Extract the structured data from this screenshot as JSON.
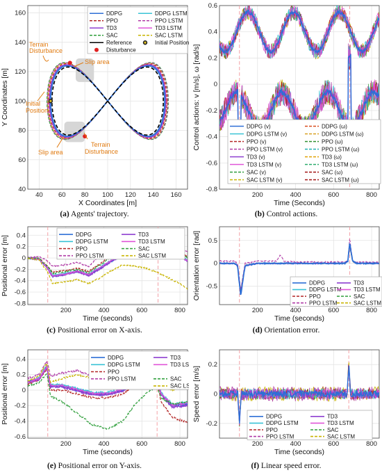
{
  "colors": {
    "DDPG": "#2d6fd6",
    "DDPG LSTM": "#39c3d6",
    "PPO": "#b22222",
    "PPO LSTM": "#b03aa6",
    "TD3": "#8e3fd0",
    "TD3 LSTM": "#e055d8",
    "SAC": "#2e9e3a",
    "SAC LSTM": "#c8b400",
    "Reference": "#000000",
    "annotation": "#e07b12",
    "initial": "#cc2020"
  },
  "chart_data": [
    {
      "id": "a",
      "type": "line",
      "caption_tag": "(a)",
      "caption_text": "Agents' trajectory.",
      "xlabel": "X Coordinates [m]",
      "ylabel": "Y Coordinates [m]",
      "xlim": [
        30,
        170
      ],
      "ylim": [
        40,
        165
      ],
      "xticks": [
        40,
        60,
        80,
        100,
        120,
        140,
        160
      ],
      "yticks": [
        40,
        60,
        80,
        100,
        120,
        140,
        160
      ],
      "grid": true,
      "legend": {
        "placement": "top-right",
        "entries": [
          "DDPG",
          "DDPG LSTM",
          "PPO",
          "PPO LSTM",
          "TD3",
          "TD3 LSTM",
          "SAC",
          "SAC LSTM",
          "Reference",
          "Initial Position",
          "Disturbance"
        ]
      },
      "series": [
        {
          "name": "DDPG",
          "center": [
            100,
            100
          ],
          "amp": [
            50,
            25
          ]
        },
        {
          "name": "Reference",
          "center": [
            100,
            100
          ],
          "amp": [
            51,
            24
          ]
        }
      ],
      "annotations": [
        "Terrain\nDisturbance",
        "Slip area",
        "Initial\nPosition",
        "Slip area",
        "Terrain\nDisturbance"
      ],
      "slip_areas": [
        {
          "x": [
            72,
            88
          ],
          "y": [
            113,
            129
          ]
        },
        {
          "x": [
            62,
            80
          ],
          "y": [
            72,
            86
          ]
        }
      ],
      "initial_position": [
        50,
        100
      ],
      "disturbances": [
        [
          67,
          126
        ],
        [
          80,
          76
        ]
      ]
    },
    {
      "id": "b",
      "type": "line",
      "caption_tag": "(b)",
      "caption_text": "Control actions.",
      "xlabel": "Time (Seconds)",
      "ylabel": "Control actions: v [m/s], ω [rad/s]",
      "xlim": [
        0,
        840
      ],
      "ylim": [
        -0.8,
        0.6
      ],
      "xticks": [
        200,
        400,
        600,
        800
      ],
      "yticks": [
        -0.8,
        -0.6,
        -0.4,
        -0.2,
        0,
        0.2,
        0.4,
        0.6
      ],
      "grid": true,
      "vlines": [
        105,
        685
      ],
      "legend": {
        "placement": "bottom",
        "entries": [
          "DDPG (v)",
          "DDPG (ω)",
          "DDPG LSTM (v)",
          "DDPG LSTM (ω)",
          "PPO (v)",
          "PPO (ω)",
          "PPO LSTM (v)",
          "PPO LSTM (ω)",
          "TD3 (v)",
          "TD3 (ω)",
          "TD3 LSTM (v)",
          "TD3 LSTM (ω)",
          "SAC (v)",
          "SAC (ω)",
          "SAC LSTM (v)",
          "SAC LSTM (ω)"
        ]
      },
      "series": [
        {
          "name": "v",
          "mean": 0.4,
          "swing": 0.15,
          "period": 240,
          "noise": 0.06
        },
        {
          "name": "ω",
          "mean": -0.2,
          "swing": 0.14,
          "period": 240,
          "noise": 0.1
        }
      ]
    },
    {
      "id": "c",
      "type": "line",
      "caption_tag": "(c)",
      "caption_text": "Positional error on X-axis.",
      "xlabel": "Time (seconds)",
      "ylabel": "Positional error [m]",
      "xlim": [
        0,
        840
      ],
      "ylim": [
        -0.82,
        0.55
      ],
      "xticks": [
        200,
        400,
        600,
        800
      ],
      "yticks": [
        -0.8,
        -0.6,
        -0.4,
        -0.2,
        0,
        0.2,
        0.4
      ],
      "grid": true,
      "vlines": [
        105,
        685
      ],
      "legend": {
        "placement": "top",
        "entries": [
          "DDPG",
          "TD3",
          "DDPG LSTM",
          "TD3 LSTM",
          "PPO",
          "SAC",
          "PPO LSTM",
          "SAC LSTM"
        ]
      },
      "x": [
        0,
        60,
        105,
        130,
        200,
        260,
        320,
        380,
        440,
        500,
        560,
        620,
        680,
        740,
        800,
        840
      ],
      "series": [
        {
          "name": "DDPG",
          "values": [
            0,
            -0.02,
            -0.18,
            -0.32,
            -0.28,
            -0.23,
            -0.3,
            -0.18,
            -0.05,
            0.05,
            0.05,
            0.04,
            0.05,
            0.08,
            0.05,
            -0.05
          ]
        },
        {
          "name": "DDPG LSTM",
          "values": [
            0,
            -0.02,
            -0.17,
            -0.3,
            -0.27,
            -0.22,
            -0.28,
            -0.16,
            -0.03,
            0.07,
            0.06,
            0.05,
            0.06,
            0.09,
            0.05,
            -0.04
          ]
        },
        {
          "name": "PPO",
          "values": [
            0,
            -0.01,
            -0.14,
            -0.25,
            -0.22,
            -0.18,
            -0.24,
            -0.1,
            0.05,
            0.15,
            0.14,
            0.12,
            0.14,
            0.16,
            0.12,
            0.02
          ]
        },
        {
          "name": "PPO LSTM",
          "values": [
            0,
            0.02,
            -0.05,
            -0.15,
            -0.12,
            -0.08,
            -0.15,
            0.05,
            0.2,
            0.32,
            0.3,
            0.25,
            0.28,
            0.25,
            0.2,
            0.1
          ]
        },
        {
          "name": "TD3",
          "values": [
            0,
            -0.02,
            -0.19,
            -0.33,
            -0.29,
            -0.24,
            -0.31,
            -0.19,
            -0.06,
            0.04,
            0.04,
            0.03,
            0.04,
            0.07,
            0.04,
            -0.06
          ]
        },
        {
          "name": "TD3 LSTM",
          "values": [
            0,
            -0.02,
            -0.18,
            -0.31,
            -0.28,
            -0.23,
            -0.29,
            -0.17,
            -0.04,
            0.06,
            0.05,
            0.04,
            0.05,
            0.08,
            0.04,
            -0.05
          ]
        },
        {
          "name": "SAC",
          "values": [
            0,
            -0.01,
            -0.15,
            -0.27,
            -0.24,
            -0.2,
            -0.26,
            -0.12,
            0.02,
            0.12,
            0.11,
            0.1,
            0.12,
            0.14,
            0.1,
            0.0
          ]
        },
        {
          "name": "SAC LSTM",
          "values": [
            0,
            -0.04,
            -0.25,
            -0.45,
            -0.42,
            -0.38,
            -0.45,
            -0.35,
            -0.22,
            -0.12,
            -0.14,
            -0.18,
            -0.25,
            -0.35,
            -0.45,
            -0.55
          ]
        }
      ]
    },
    {
      "id": "d",
      "type": "line",
      "caption_tag": "(d)",
      "caption_text": "Orientation error.",
      "xlabel": "Time (seconds)",
      "ylabel": "Orientation error [rad]",
      "xlim": [
        0,
        840
      ],
      "ylim": [
        -0.9,
        0.8
      ],
      "xticks": [
        200,
        400,
        600,
        800
      ],
      "yticks": [
        -0.5,
        0,
        0.5
      ],
      "grid": true,
      "vlines": [
        105,
        685
      ],
      "legend": {
        "placement": "bottom-right",
        "entries": [
          "DDPG",
          "TD3",
          "DDPG LSTM",
          "TD3 LSTM",
          "PPO",
          "SAC",
          "PPO LSTM",
          "SAC LSTM"
        ]
      },
      "x": [
        0,
        80,
        95,
        105,
        112,
        120,
        135,
        200,
        300,
        320,
        340,
        400,
        500,
        600,
        660,
        675,
        685,
        692,
        700,
        720,
        800,
        840
      ],
      "series": [
        {
          "name": "DDPG",
          "values": [
            0,
            0,
            -0.05,
            -0.45,
            -0.72,
            -0.45,
            -0.05,
            0,
            0,
            0,
            0,
            0,
            0,
            0,
            0,
            0.05,
            0.45,
            0.25,
            0.05,
            0,
            0,
            0
          ]
        },
        {
          "name": "PPO LSTM",
          "values": [
            0.05,
            0.05,
            0,
            -0.35,
            -0.6,
            -0.35,
            0,
            0.05,
            0.05,
            0.18,
            0.05,
            0.03,
            0.03,
            0.03,
            0.03,
            0.05,
            0.55,
            0.3,
            0.05,
            0.03,
            0.03,
            0.03
          ]
        }
      ]
    },
    {
      "id": "e",
      "type": "line",
      "caption_tag": "(e)",
      "caption_text": "Positional error on Y-axis.",
      "xlabel": "Time (seconds)",
      "ylabel": "Positional error [m]",
      "xlim": [
        0,
        840
      ],
      "ylim": [
        -0.62,
        0.52
      ],
      "xticks": [
        200,
        400,
        600,
        800
      ],
      "yticks": [
        -0.6,
        -0.4,
        -0.2,
        0,
        0.2,
        0.4
      ],
      "grid": true,
      "vlines": [
        105,
        680
      ],
      "legend": {
        "placement": "top-right",
        "entries": [
          "DDPG",
          "TD3",
          "DDPG LSTM",
          "TD3 LSTM",
          "PPO",
          "",
          "PPO LSTM",
          "SAC",
          "",
          "SAC LSTM"
        ]
      },
      "x": [
        0,
        60,
        100,
        120,
        180,
        260,
        340,
        420,
        500,
        560,
        620,
        680,
        700,
        760,
        840
      ],
      "series": [
        {
          "name": "DDPG",
          "values": [
            0.1,
            0.15,
            0.3,
            0.05,
            0.05,
            0.0,
            -0.05,
            -0.05,
            0.0,
            0.1,
            0.15,
            0.2,
            -0.05,
            -0.2,
            -0.18
          ]
        },
        {
          "name": "DDPG LSTM",
          "values": [
            0.1,
            0.16,
            0.32,
            0.07,
            0.07,
            0.02,
            -0.03,
            -0.03,
            0.02,
            0.12,
            0.17,
            0.22,
            -0.03,
            -0.18,
            -0.15
          ]
        },
        {
          "name": "PPO",
          "values": [
            0.08,
            0.13,
            0.28,
            0.0,
            0.0,
            -0.05,
            -0.1,
            -0.1,
            -0.05,
            0.05,
            0.1,
            0.15,
            -0.15,
            -0.35,
            -0.42
          ]
        },
        {
          "name": "PPO LSTM",
          "values": [
            0.15,
            0.2,
            0.38,
            0.18,
            0.22,
            0.25,
            0.18,
            0.15,
            0.18,
            0.25,
            0.28,
            0.3,
            0.1,
            0.05,
            0.1
          ]
        },
        {
          "name": "TD3",
          "values": [
            0.1,
            0.14,
            0.29,
            0.04,
            0.04,
            -0.01,
            -0.06,
            -0.06,
            -0.01,
            0.09,
            0.14,
            0.19,
            -0.06,
            -0.22,
            -0.2
          ]
        },
        {
          "name": "TD3 LSTM",
          "values": [
            0.1,
            0.15,
            0.31,
            0.06,
            0.06,
            0.01,
            -0.04,
            -0.04,
            0.01,
            0.11,
            0.16,
            0.21,
            -0.04,
            -0.19,
            -0.17
          ]
        },
        {
          "name": "SAC",
          "values": [
            0.05,
            0.1,
            0.22,
            -0.08,
            -0.15,
            -0.3,
            -0.45,
            -0.5,
            -0.4,
            -0.2,
            -0.05,
            0.05,
            -0.1,
            -0.18,
            -0.15
          ]
        },
        {
          "name": "SAC LSTM",
          "values": [
            0.12,
            0.18,
            0.35,
            0.1,
            0.15,
            0.2,
            0.15,
            0.12,
            0.15,
            0.22,
            0.25,
            0.28,
            0.05,
            0.0,
            0.1
          ]
        }
      ]
    },
    {
      "id": "f",
      "type": "line",
      "caption_tag": "(f)",
      "caption_text": "Linear speed error.",
      "xlabel": "Time (seconds)",
      "ylabel": "Speed error [m/s]",
      "xlim": [
        0,
        840
      ],
      "ylim": [
        -0.3,
        0.3
      ],
      "xticks": [
        200,
        400,
        600,
        800
      ],
      "yticks": [
        -0.2,
        0,
        0.2
      ],
      "grid": true,
      "vlines": [
        105,
        680
      ],
      "legend": {
        "placement": "bottom-right",
        "entries": [
          "DDPG",
          "TD3",
          "DDPG LSTM",
          "TD3 LSTM",
          "PPO",
          "SAC",
          "PPO LSTM",
          "SAC LSTM"
        ]
      },
      "series": [
        {
          "name": "noise",
          "noise": 0.05,
          "spikes": [
            {
              "x": 105,
              "y": -0.2
            },
            {
              "x": 680,
              "y": 0.2
            }
          ]
        }
      ]
    }
  ]
}
